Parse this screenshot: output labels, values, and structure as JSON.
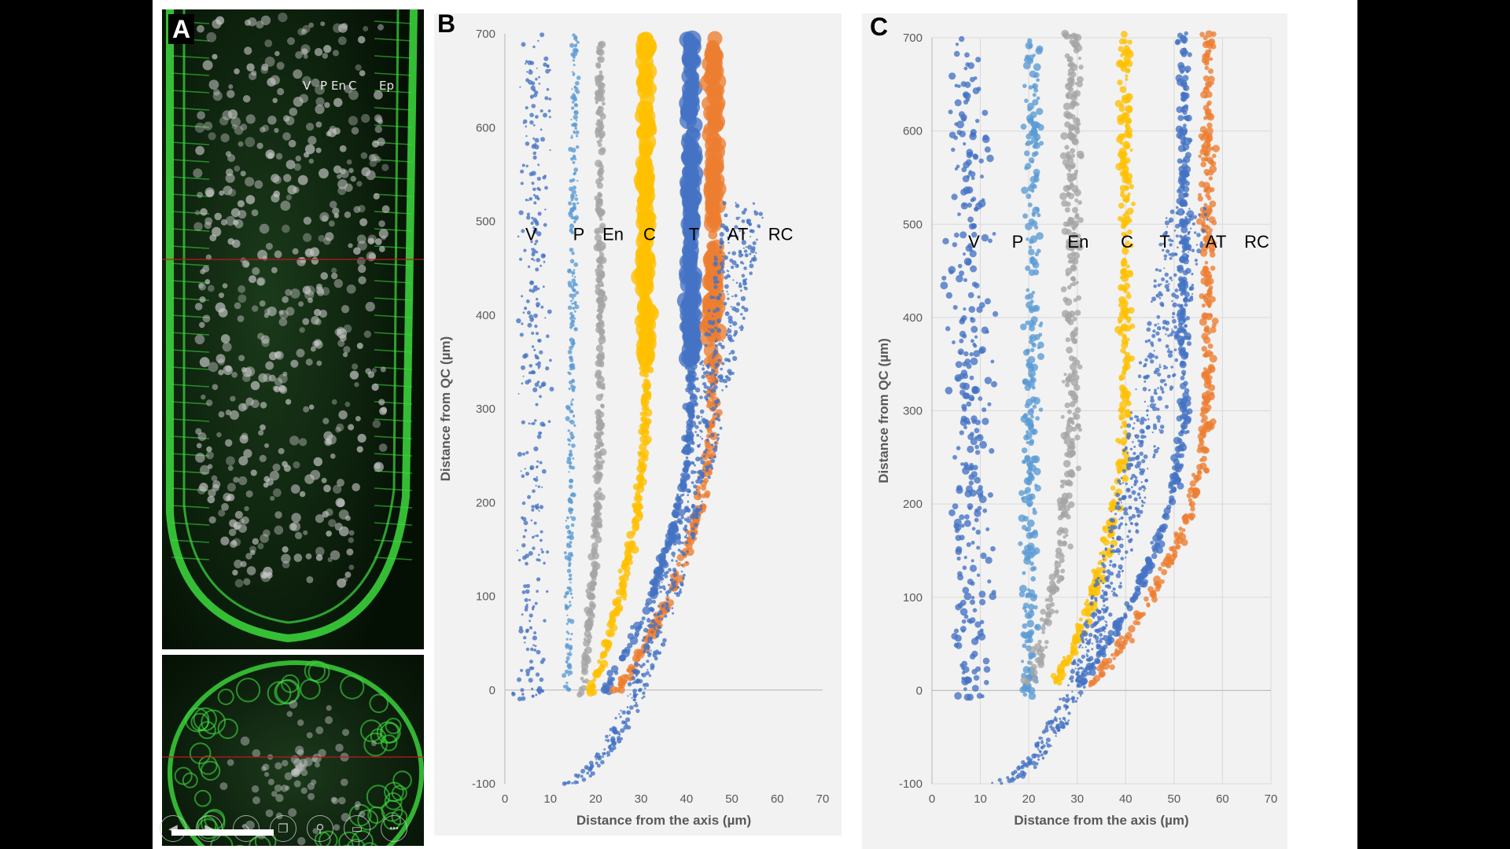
{
  "figure": {
    "panel_A": {
      "letter": "A",
      "labels": [
        "V",
        "P",
        "En",
        "C",
        "Ep"
      ],
      "viewer_toolbar": [
        {
          "name": "previous",
          "icon": "arrow-left-icon",
          "glyph": "◀"
        },
        {
          "name": "next",
          "icon": "arrow-right-icon",
          "glyph": "▶"
        },
        {
          "name": "pen",
          "icon": "pen-icon",
          "glyph": "✎"
        },
        {
          "name": "slides",
          "icon": "slides-icon",
          "glyph": "❐"
        },
        {
          "name": "zoom",
          "icon": "magnifier-icon",
          "glyph": "⚲"
        },
        {
          "name": "subtitles",
          "icon": "subtitles-icon",
          "glyph": "▭"
        },
        {
          "name": "more",
          "icon": "more-icon",
          "glyph": "•••"
        }
      ],
      "colors": {
        "membrane": "#3ddc3d",
        "nuclei": "#c8c8c8",
        "section_line": "#c8141e"
      }
    },
    "panel_B": {
      "letter": "B"
    },
    "panel_C": {
      "letter": "C"
    }
  },
  "series_colors": {
    "V": "#4472c4",
    "P": "#5b9bd5",
    "En": "#a5a5a5",
    "C": "#ffc000",
    "T": "#4472c4",
    "AT": "#ed7d31",
    "RC": "#4472c4"
  },
  "chart_data": [
    {
      "panel": "B",
      "type": "scatter",
      "title": "",
      "xlabel": "Distance from the axis (µm)",
      "ylabel": "Distance from QC (µm)",
      "xlim": [
        0,
        70
      ],
      "ylim": [
        -100,
        700
      ],
      "xticks": [
        "0",
        "10",
        "20",
        "30",
        "40",
        "50",
        "60",
        "70"
      ],
      "yticks": [
        "-100",
        "0",
        "100",
        "200",
        "300",
        "400",
        "500",
        "600",
        "700"
      ],
      "grid": false,
      "annotations": [
        "V",
        "P",
        "En",
        "C",
        "T",
        "AT",
        "RC"
      ],
      "annotation_positions_data": [
        [
          4.5,
          480
        ],
        [
          15,
          480
        ],
        [
          21.5,
          480
        ],
        [
          30.5,
          480
        ],
        [
          40.5,
          480
        ],
        [
          49,
          480
        ],
        [
          58,
          480
        ]
      ],
      "series": [
        {
          "name": "V",
          "shape": "vertical-band",
          "x_top": 7,
          "x_bottom": 6,
          "spread": 5,
          "size": "small"
        },
        {
          "name": "P",
          "shape": "vertical-band",
          "x_top": 15.5,
          "x_bottom": 14,
          "spread": 1.2,
          "size": "small"
        },
        {
          "name": "En",
          "shape": "curve",
          "x_top": 21,
          "x_bottom": 17,
          "spread": 1.0,
          "size": "medium"
        },
        {
          "name": "C",
          "shape": "curve",
          "x_top": 31,
          "x_bottom": 19,
          "spread": 1.3,
          "size": "large-top"
        },
        {
          "name": "T",
          "shape": "curve",
          "x_top": 41,
          "x_bottom": 22,
          "spread": 1.3,
          "size": "large-top"
        },
        {
          "name": "AT",
          "shape": "curve",
          "x_top": 46,
          "x_bottom": 25,
          "spread": 1.6,
          "size": "large-top"
        },
        {
          "name": "RC",
          "shape": "fan",
          "x_top": 57,
          "x_bottom": 10,
          "spread": 6,
          "size": "small"
        }
      ]
    },
    {
      "panel": "C",
      "type": "scatter",
      "title": "",
      "xlabel": "Distance from the axis (µm)",
      "ylabel": "Distance from QC (µm)",
      "xlim": [
        0,
        70
      ],
      "ylim": [
        -100,
        700
      ],
      "xticks": [
        "0",
        "10",
        "20",
        "30",
        "40",
        "50",
        "60",
        "70"
      ],
      "yticks": [
        "-100",
        "0",
        "100",
        "200",
        "300",
        "400",
        "500",
        "600",
        "700"
      ],
      "grid": true,
      "annotations": [
        "V",
        "P",
        "En",
        "C",
        "T",
        "AT",
        "RC"
      ],
      "annotation_positions_data": [
        [
          7.5,
          475
        ],
        [
          16.5,
          475
        ],
        [
          28,
          475
        ],
        [
          39,
          475
        ],
        [
          47,
          475
        ],
        [
          56.5,
          475
        ],
        [
          64.5,
          475
        ]
      ],
      "series": [
        {
          "name": "V",
          "shape": "vertical-band",
          "x_top": 8,
          "x_bottom": 8,
          "spread": 6,
          "size": "medium"
        },
        {
          "name": "P",
          "shape": "vertical-band",
          "x_top": 21,
          "x_bottom": 20,
          "spread": 2.5,
          "size": "medium"
        },
        {
          "name": "En",
          "shape": "curve",
          "x_top": 29,
          "x_bottom": 20,
          "spread": 2.2,
          "size": "medium"
        },
        {
          "name": "C",
          "shape": "curve",
          "x_top": 40,
          "x_bottom": 25,
          "spread": 1.8,
          "size": "medium"
        },
        {
          "name": "T",
          "shape": "curve",
          "x_top": 52,
          "x_bottom": 30,
          "spread": 1.6,
          "size": "medium"
        },
        {
          "name": "AT",
          "shape": "curve",
          "x_top": 57,
          "x_bottom": 32,
          "spread": 2.0,
          "size": "medium"
        },
        {
          "name": "RC",
          "shape": "fan",
          "x_top": 60,
          "x_bottom": 40,
          "spread": 6,
          "size": "small"
        }
      ]
    }
  ]
}
